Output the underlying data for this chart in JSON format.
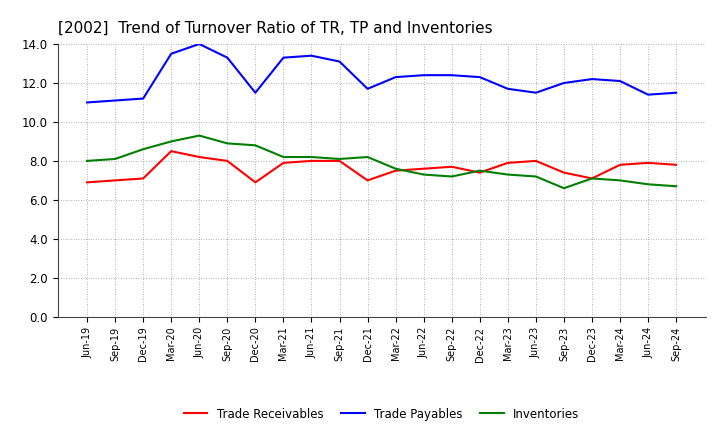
{
  "title": "[2002]  Trend of Turnover Ratio of TR, TP and Inventories",
  "x_labels": [
    "Jun-19",
    "Sep-19",
    "Dec-19",
    "Mar-20",
    "Jun-20",
    "Sep-20",
    "Dec-20",
    "Mar-21",
    "Jun-21",
    "Sep-21",
    "Dec-21",
    "Mar-22",
    "Jun-22",
    "Sep-22",
    "Dec-22",
    "Mar-23",
    "Jun-23",
    "Sep-23",
    "Dec-23",
    "Mar-24",
    "Jun-24",
    "Sep-24"
  ],
  "trade_receivables": [
    6.9,
    7.0,
    7.1,
    8.5,
    8.2,
    8.0,
    6.9,
    7.9,
    8.0,
    8.0,
    7.0,
    7.5,
    7.6,
    7.7,
    7.4,
    7.9,
    8.0,
    7.4,
    7.1,
    7.8,
    7.9,
    7.8
  ],
  "trade_payables": [
    11.0,
    11.1,
    11.2,
    13.5,
    14.0,
    13.3,
    11.5,
    13.3,
    13.4,
    13.1,
    11.7,
    12.3,
    12.4,
    12.4,
    12.3,
    11.7,
    11.5,
    12.0,
    12.2,
    12.1,
    11.4,
    11.5
  ],
  "inventories": [
    8.0,
    8.1,
    8.6,
    9.0,
    9.3,
    8.9,
    8.8,
    8.2,
    8.2,
    8.1,
    8.2,
    7.6,
    7.3,
    7.2,
    7.5,
    7.3,
    7.2,
    6.6,
    7.1,
    7.0,
    6.8,
    6.7
  ],
  "line_colors": {
    "trade_receivables": "#ff0000",
    "trade_payables": "#0000ff",
    "inventories": "#008000"
  },
  "ylim": [
    0,
    14.0
  ],
  "yticks": [
    0.0,
    2.0,
    4.0,
    6.0,
    8.0,
    10.0,
    12.0,
    14.0
  ],
  "background_color": "#ffffff",
  "grid_color": "#aaaaaa",
  "title_fontsize": 11,
  "legend_labels": [
    "Trade Receivables",
    "Trade Payables",
    "Inventories"
  ]
}
